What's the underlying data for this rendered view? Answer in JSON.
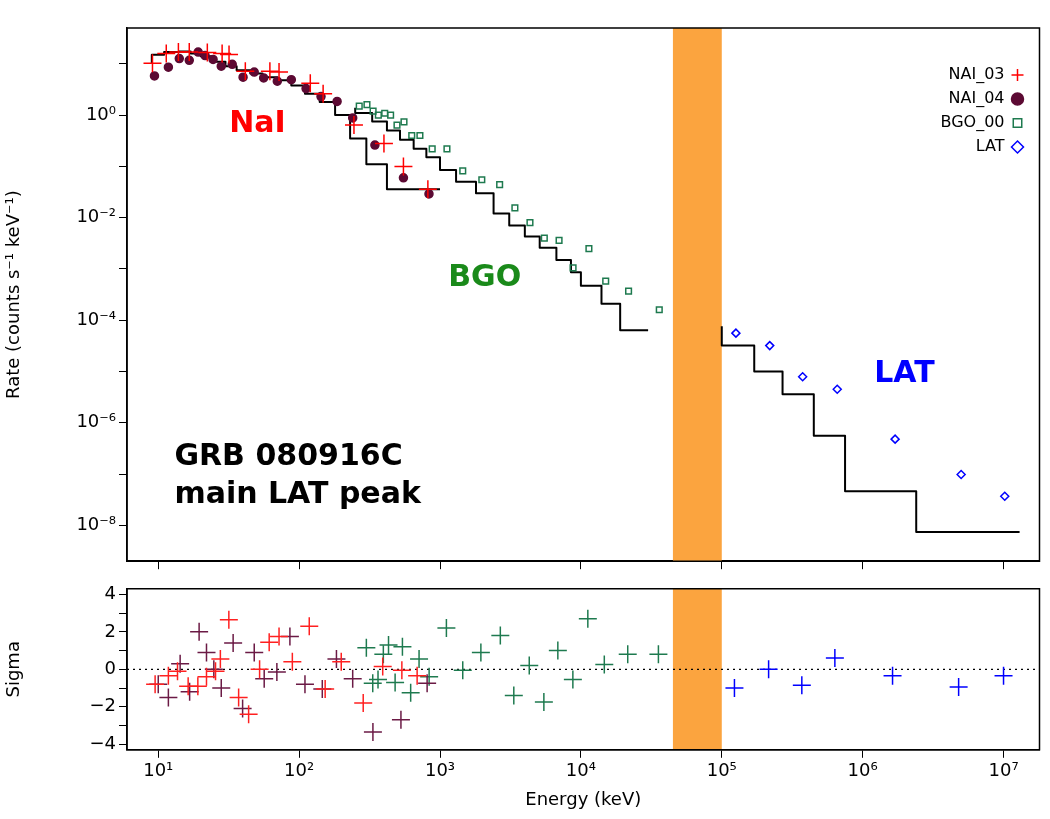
{
  "chart_data": [
    {
      "type": "scatter",
      "ylabel": "Rate (counts s⁻¹ keV⁻¹)",
      "log": "xy",
      "grid": false,
      "legend": "top right",
      "tick_labels": "y",
      "xlim": [
        6,
        18000000
      ],
      "xticks": [
        {
          "value": 10,
          "label": null
        },
        {
          "value": 100,
          "label": null
        },
        {
          "value": 1000,
          "label": null
        },
        {
          "value": 10000,
          "label": null
        },
        {
          "value": 100000,
          "label": null
        },
        {
          "value": 1000000,
          "label": null
        },
        {
          "value": 10000000,
          "label": null
        }
      ],
      "ylim": [
        2e-09,
        50
      ],
      "yticks": [
        {
          "value": 10,
          "label": null
        },
        {
          "value": 1,
          "label": "10⁰"
        },
        {
          "value": 0.1,
          "label": null
        },
        {
          "value": 0.01,
          "label": "10⁻²"
        },
        {
          "value": 0.001,
          "label": null
        },
        {
          "value": 0.0001,
          "label": "10⁻⁴"
        },
        {
          "value": 1e-05,
          "label": null
        },
        {
          "value": 1e-06,
          "label": "10⁻⁶"
        },
        {
          "value": 1e-07,
          "label": null
        },
        {
          "value": 1e-08,
          "label": "10⁻⁸"
        }
      ],
      "bands": [
        {
          "axis": "x",
          "from": 45000,
          "to": 100000,
          "color": "#fba43f"
        }
      ],
      "annotations": [
        "NaI",
        "BGO",
        "LAT",
        "GRB 080916C\nmain LAT peak"
      ],
      "series": [
        {
          "name": "NAI_03",
          "type": "scatter",
          "marker": "cross",
          "color": "#ff0000",
          "x": [
            9.1,
            11.4,
            13.9,
            16.6,
            22.3,
            28.4,
            31.8,
            41.5,
            62,
            72,
            120,
            148,
            245,
            400,
            550,
            820
          ],
          "values": [
            10.3,
            15.9,
            17,
            17,
            16.6,
            15.9,
            15.2,
            7.2,
            7.2,
            6.9,
            4.2,
            2.6,
            0.64,
            0.28,
            0.1,
            0.036
          ]
        },
        {
          "name": "NAI_04",
          "type": "scatter",
          "marker": "circle",
          "color": "#5c0a33",
          "x": [
            9.4,
            11.8,
            14.1,
            16.6,
            19.2,
            21.5,
            24.5,
            28,
            33.5,
            40,
            48,
            56,
            70,
            88,
            112,
            143,
            186,
            240,
            345,
            550,
            835
          ],
          "values": [
            5.8,
            8.6,
            12.7,
            11.7,
            17,
            14.5,
            12.2,
            9,
            9.8,
            5.5,
            6.9,
            5.3,
            4.6,
            4.9,
            3.3,
            2.3,
            1.85,
            0.88,
            0.26,
            0.06,
            0.029
          ]
        },
        {
          "name": "BGO_00",
          "type": "scatter",
          "marker": "square",
          "color": "#1e7a4f",
          "x": [
            267,
            303,
            335,
            365,
            405,
            446,
            495,
            555,
            630,
            720,
            880,
            1120,
            1450,
            1980,
            2650,
            3400,
            4350,
            5500,
            7000,
            8800,
            11400,
            15000,
            21800,
            36000
          ],
          "values": [
            1.5,
            1.6,
            1.2,
            1.0,
            1.09,
            1.0,
            0.64,
            0.74,
            0.4,
            0.4,
            0.22,
            0.22,
            0.082,
            0.055,
            0.044,
            0.0155,
            0.008,
            0.004,
            0.0036,
            0.00105,
            0.0025,
            0.00058,
            0.00037,
            0.00016
          ]
        },
        {
          "name": "LAT",
          "type": "scatter",
          "marker": "diamond",
          "color": "#0000ff",
          "x": [
            126000,
            219000,
            375000,
            660000,
            1700000,
            5000000,
            10200000
          ],
          "values": [
            5.6e-05,
            3.2e-05,
            7.9e-06,
            4.5e-06,
            4.8e-07,
            9.8e-08,
            3.7e-08
          ]
        },
        {
          "type": "step",
          "marker": "none",
          "color": "#000000",
          "x": [
            9,
            11,
            14,
            17,
            20,
            24,
            30,
            36,
            45,
            55,
            70,
            88,
            110,
            140,
            180,
            230,
            300,
            420,
            600,
            1000
          ],
          "values": [
            10,
            15,
            17,
            17.5,
            16,
            14,
            11,
            9,
            7.5,
            6.5,
            5.5,
            4.8,
            3.8,
            2.6,
            1.8,
            1.0,
            0.35,
            0.11,
            0.036,
            0.036
          ]
        },
        {
          "type": "step",
          "marker": "none",
          "color": "#000000",
          "x": [
            250,
            330,
            420,
            520,
            650,
            800,
            1000,
            1300,
            1800,
            2400,
            3100,
            4000,
            5100,
            6700,
            8500,
            10000,
            14000,
            19000,
            30000,
            45000,
            100000,
            170000,
            270000,
            450000,
            750000,
            2400000,
            6500000,
            13000000
          ],
          "values": [
            1.4,
            1.1,
            0.75,
            0.5,
            0.33,
            0.22,
            0.15,
            0.085,
            0.05,
            0.03,
            0.012,
            0.007,
            0.0043,
            0.0026,
            0.0015,
            0.00086,
            0.00047,
            0.00021,
            6.4e-05,
            null,
            7.6e-05,
            3.2e-05,
            1e-05,
            3.6e-06,
            5.6e-07,
            4.6e-08,
            7.4e-09,
            7.4e-09
          ]
        }
      ]
    },
    {
      "type": "scatter",
      "xlabel": "Energy (keV)",
      "ylabel": "Sigma",
      "log": "x",
      "grid": false,
      "marker": "cross",
      "xlim": [
        6,
        18000000
      ],
      "xticks": [
        {
          "value": 10,
          "label": "10¹"
        },
        {
          "value": 100,
          "label": "10²"
        },
        {
          "value": 1000,
          "label": "10³"
        },
        {
          "value": 10000,
          "label": "10⁴"
        },
        {
          "value": 100000,
          "label": "10⁵"
        },
        {
          "value": 1000000,
          "label": "10⁶"
        },
        {
          "value": 10000000,
          "label": "10⁷"
        }
      ],
      "ylim": [
        -4.3,
        4.3
      ],
      "yticks": [
        4,
        {
          "value": 3,
          "label": null
        },
        2,
        {
          "value": 1,
          "label": null
        },
        0,
        {
          "value": -1,
          "label": null
        },
        {
          "value": -2,
          "label": "−2"
        },
        {
          "value": -3,
          "label": null
        },
        {
          "value": -4,
          "label": "−4"
        }
      ],
      "bands": [
        {
          "axis": "x",
          "from": 45000,
          "to": 100000,
          "color": "#fba43f"
        }
      ],
      "ref_lines": [
        {
          "axis": "y",
          "value": 0,
          "line_style": "dotted",
          "color": "#000000"
        }
      ],
      "series": [
        {
          "color": "#ff2020",
          "x": [
            9.5,
            11.8,
            13.7,
            16.3,
            19.1,
            22,
            25.5,
            27.6,
            31.7,
            37.2,
            43.8,
            52.4,
            61.3,
            72,
            89.5,
            118,
            153,
            199,
            285,
            392,
            536,
            688
          ],
          "values": [
            -0.8,
            -0.35,
            -0.1,
            -0.9,
            -0.9,
            -0.4,
            -0.1,
            0.55,
            2.65,
            -1.5,
            -2.4,
            0,
            1.45,
            1.75,
            0.4,
            2.3,
            -1.05,
            0.4,
            -1.8,
            0.15,
            -0.05,
            -0.35
          ]
        },
        {
          "color": "#6b1a45",
          "x": [
            10,
            11.8,
            14.3,
            16.7,
            19.5,
            22,
            24.8,
            28,
            34,
            39.7,
            48,
            56.5,
            69.5,
            86,
            110,
            146,
            184,
            240,
            334,
            528,
            810
          ],
          "values": [
            -0.8,
            -1.5,
            0.3,
            -1.2,
            2,
            0.9,
            0,
            -1,
            1.4,
            -2.1,
            0.9,
            -0.5,
            -0.15,
            1.75,
            -0.8,
            -1.05,
            0.55,
            -0.5,
            -3.35,
            -2.7,
            -0.75
          ]
        },
        {
          "color": "#1e7a4f",
          "x": [
            300,
            333,
            363,
            396,
            431,
            480,
            541,
            619,
            710,
            837,
            1110,
            1450,
            1950,
            2680,
            3340,
            4300,
            5460,
            6860,
            8770,
            11200,
            14660,
            21500,
            35500
          ],
          "values": [
            1.15,
            -0.75,
            -0.55,
            0.8,
            1.3,
            -0.7,
            1.2,
            -1.25,
            0.55,
            -0.4,
            2.2,
            -0.05,
            0.9,
            1.8,
            -1.4,
            0.2,
            -1.75,
            1,
            -0.55,
            2.7,
            0.25,
            0.8,
            0.8
          ]
        },
        {
          "color": "#0000ff",
          "x": [
            123000,
            215000,
            370000,
            635000,
            1630000,
            4800000,
            10000000
          ],
          "values": [
            -1,
            0,
            -0.85,
            0.6,
            -0.35,
            -0.95,
            -0.35
          ]
        }
      ]
    }
  ]
}
